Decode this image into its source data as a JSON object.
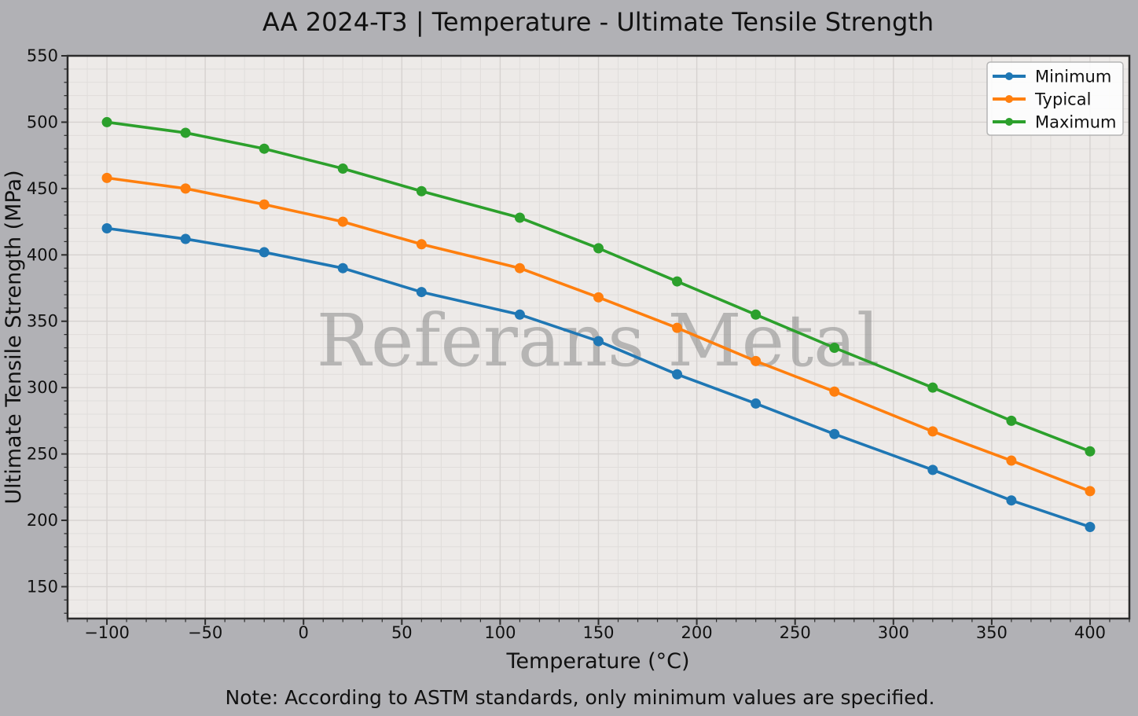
{
  "title": "AA 2024-T3 | Temperature - Ultimate Tensile Strength",
  "note": "Note: According to ASTM standards, only minimum values are specified.",
  "watermark": "Referans Metal",
  "colors": {
    "figure_bg": "#b1b1b5",
    "plot_bg": "#edeae8",
    "grid_major": "#d6d2d0",
    "grid_minor": "#e0dddb",
    "spine": "#2b2b2b",
    "text": "#111111",
    "watermark": "#8a8a8a",
    "legend_bg": "#fdfdfd",
    "legend_border": "#b5b5b5",
    "series_minimum": "#1f77b4",
    "series_typical": "#ff7f0e",
    "series_maximum": "#2ca02c"
  },
  "legend": {
    "items": [
      {
        "label": "Minimum",
        "color": "#1f77b4"
      },
      {
        "label": "Typical",
        "color": "#ff7f0e"
      },
      {
        "label": "Maximum",
        "color": "#2ca02c"
      }
    ]
  },
  "chart_data": {
    "type": "line",
    "title": "AA 2024-T3 | Temperature - Ultimate Tensile Strength",
    "xlabel": "Temperature (°C)",
    "ylabel": "Ultimate Tensile Strength (MPa)",
    "x": [
      -100,
      -60,
      -20,
      20,
      60,
      110,
      150,
      190,
      230,
      270,
      320,
      360,
      400
    ],
    "series": [
      {
        "name": "Minimum",
        "color": "#1f77b4",
        "values": [
          420,
          412,
          402,
          390,
          372,
          355,
          335,
          310,
          288,
          265,
          238,
          215,
          195
        ]
      },
      {
        "name": "Typical",
        "color": "#ff7f0e",
        "values": [
          458,
          450,
          438,
          425,
          408,
          390,
          368,
          345,
          320,
          297,
          267,
          245,
          222
        ]
      },
      {
        "name": "Maximum",
        "color": "#2ca02c",
        "values": [
          500,
          492,
          480,
          465,
          448,
          428,
          405,
          380,
          355,
          330,
          300,
          275,
          252
        ]
      }
    ],
    "xticks": [
      -100,
      -50,
      0,
      50,
      100,
      150,
      200,
      250,
      300,
      350,
      400
    ],
    "yticks": [
      150,
      200,
      250,
      300,
      350,
      400,
      450,
      500,
      550
    ],
    "x_minor_step": 10,
    "y_minor_step": 10,
    "xlim": [
      -120,
      420
    ],
    "ylim": [
      126,
      550
    ],
    "grid": true,
    "legend_position": "upper right",
    "marker": "circle"
  }
}
